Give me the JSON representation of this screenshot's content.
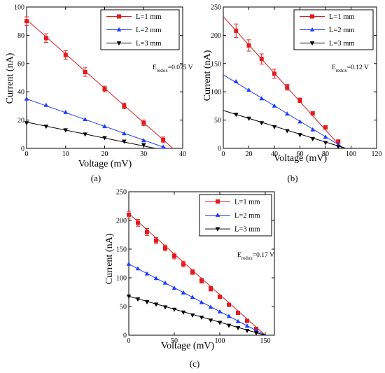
{
  "chart_data": [
    {
      "type": "line",
      "panel_label": "(a)",
      "xlabel": "Voltage (mV)",
      "ylabel": "Current (nA)",
      "xlim": [
        0,
        40
      ],
      "ylim": [
        0,
        100
      ],
      "xticks": [
        0,
        10,
        20,
        30,
        40
      ],
      "yticks": [
        0,
        20,
        40,
        60,
        80,
        100
      ],
      "annotation": {
        "base": "E",
        "sub": "redox",
        "rest": "=0.075 V"
      },
      "legend_position": "top-right",
      "series": [
        {
          "name": "L=1 mm",
          "color": "#e31a1c",
          "marker": "square",
          "x": [
            0,
            5,
            10,
            15,
            20,
            25,
            30,
            35
          ],
          "y": [
            90,
            78,
            66,
            54,
            42,
            30,
            18,
            6
          ],
          "error": [
            3,
            3,
            3,
            3,
            2,
            2,
            2,
            2
          ],
          "fit": [
            [
              0,
              91
            ],
            [
              37.5,
              0
            ]
          ]
        },
        {
          "name": "L=2 mm",
          "color": "#1f3cff",
          "marker": "triangle-up",
          "x": [
            0,
            5,
            10,
            15,
            20,
            25,
            30,
            35
          ],
          "y": [
            35,
            30.5,
            25.5,
            20.5,
            15.5,
            10.5,
            5.5,
            1
          ],
          "fit": [
            [
              0,
              35
            ],
            [
              36,
              0
            ]
          ]
        },
        {
          "name": "L=3 mm",
          "color": "#000000",
          "marker": "triangle-down",
          "x": [
            0,
            5,
            10,
            15,
            20,
            25,
            30
          ],
          "y": [
            18,
            15.5,
            13,
            10,
            7.5,
            5,
            2.5
          ],
          "fit": [
            [
              0,
              18.5
            ],
            [
              33,
              0
            ]
          ]
        }
      ]
    },
    {
      "type": "line",
      "panel_label": "(b)",
      "xlabel": "Voltage (mV)",
      "ylabel": "Current (nA)",
      "xlim": [
        0,
        120
      ],
      "ylim": [
        0,
        250
      ],
      "xticks": [
        0,
        20,
        40,
        60,
        80,
        100,
        120
      ],
      "yticks": [
        0,
        50,
        100,
        150,
        200,
        250
      ],
      "annotation": {
        "base": "E",
        "sub": "redox",
        "rest": "=0.12 V"
      },
      "legend_position": "top-right",
      "series": [
        {
          "name": "L=1 mm",
          "color": "#e31a1c",
          "marker": "square",
          "x": [
            10,
            20,
            30,
            40,
            50,
            60,
            70,
            80,
            90
          ],
          "y": [
            208,
            182,
            158,
            132,
            108,
            85,
            62,
            37,
            12
          ],
          "error": [
            12,
            10,
            9,
            8,
            5,
            4,
            3,
            3,
            3
          ],
          "fit": [
            [
              0,
              233
            ],
            [
              93,
              0
            ]
          ]
        },
        {
          "name": "L=2 mm",
          "color": "#1f3cff",
          "marker": "triangle-up",
          "x": [
            10,
            20,
            30,
            40,
            50,
            60,
            70,
            80,
            90
          ],
          "y": [
            118,
            103,
            88,
            75,
            61,
            47,
            33,
            20,
            7
          ],
          "fit": [
            [
              0,
              130
            ],
            [
              95,
              0
            ]
          ]
        },
        {
          "name": "L=3 mm",
          "color": "#000000",
          "marker": "triangle-down",
          "x": [
            10,
            20,
            30,
            40,
            50,
            60,
            70,
            80,
            90
          ],
          "y": [
            60,
            53,
            45,
            38,
            31,
            24,
            17,
            10,
            3
          ],
          "fit": [
            [
              0,
              67
            ],
            [
              96,
              0
            ]
          ]
        }
      ]
    },
    {
      "type": "line",
      "panel_label": "(c)",
      "xlabel": "Voltage (mV)",
      "ylabel": "Current (nA)",
      "xlim": [
        0,
        160
      ],
      "ylim": [
        0,
        250
      ],
      "xticks": [
        0,
        50,
        100,
        150
      ],
      "yticks": [
        0,
        50,
        100,
        150,
        200,
        250
      ],
      "annotation": {
        "base": "E",
        "sub": "redox",
        "rest": "=0.17 V"
      },
      "legend_position": "top-right",
      "series": [
        {
          "name": "L=1 mm",
          "color": "#e31a1c",
          "marker": "square",
          "x": [
            0,
            10,
            20,
            30,
            40,
            50,
            60,
            70,
            80,
            90,
            100,
            110,
            120,
            130,
            140
          ],
          "y": [
            210,
            196,
            180,
            165,
            152,
            138,
            124,
            110,
            95,
            81,
            67,
            53,
            39,
            25,
            11
          ],
          "error": [
            6,
            6,
            6,
            5,
            5,
            5,
            5,
            4,
            4,
            4,
            3,
            3,
            3,
            3,
            3
          ],
          "fit": [
            [
              0,
              212
            ],
            [
              150,
              0
            ]
          ]
        },
        {
          "name": "L=2 mm",
          "color": "#1f3cff",
          "marker": "triangle-up",
          "x": [
            0,
            10,
            20,
            30,
            40,
            50,
            60,
            70,
            80,
            90,
            100,
            110,
            120,
            130,
            140
          ],
          "y": [
            124,
            116,
            107,
            99,
            91,
            82,
            74,
            66,
            57,
            49,
            41,
            33,
            24,
            16,
            8
          ],
          "fit": [
            [
              0,
              124
            ],
            [
              150,
              0
            ]
          ]
        },
        {
          "name": "L=3 mm",
          "color": "#000000",
          "marker": "triangle-down",
          "x": [
            0,
            10,
            20,
            30,
            40,
            50,
            60,
            70,
            80,
            90,
            100,
            110,
            120,
            130,
            140
          ],
          "y": [
            68,
            63,
            58,
            54,
            49,
            45,
            40,
            35,
            31,
            26,
            22,
            17,
            13,
            8,
            4
          ],
          "fit": [
            [
              0,
              68
            ],
            [
              150,
              0
            ]
          ]
        }
      ]
    }
  ]
}
